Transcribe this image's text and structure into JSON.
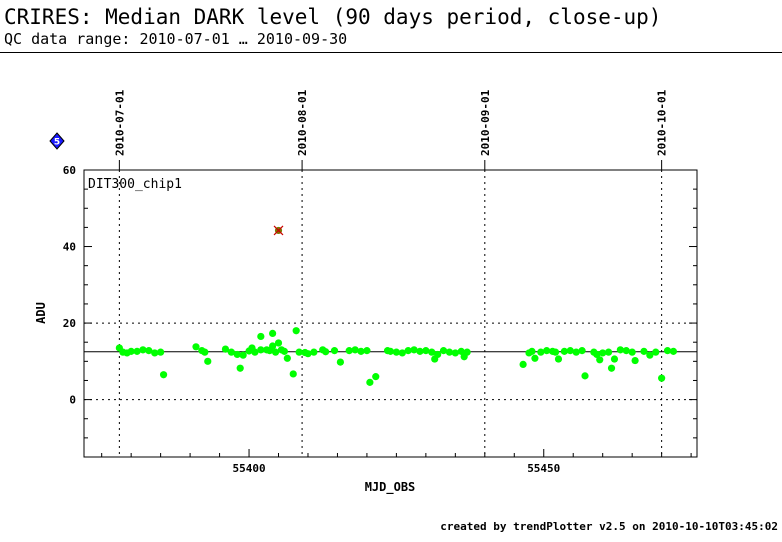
{
  "header": {
    "title": "CRIRES: Median DARK level (90 days period, close-up)",
    "subtitle": "QC data range: 2010-07-01 … 2010-09-30"
  },
  "footer": {
    "credit": "created by trendPlotter v2.5 on 2010-10-10T03:45:02"
  },
  "badge": {
    "label": "5",
    "color": "#1a1aff"
  },
  "chart_data": {
    "type": "scatter",
    "panel_label": "DIT300_chip1",
    "xlabel": "MJD_OBS",
    "ylabel": "ADU",
    "xlim": [
      55372,
      55476
    ],
    "ylim": [
      -15,
      60
    ],
    "x_ticks": [
      55400,
      55450
    ],
    "x_tick_labels": [
      "55400",
      "55450"
    ],
    "y_ticks": [
      0,
      20,
      40,
      60
    ],
    "y_tick_labels": [
      "0",
      "20",
      "40",
      "60"
    ],
    "y_gridlines": [
      0,
      20
    ],
    "reference_line": 12.5,
    "date_markers": [
      {
        "label": "2010-07-01",
        "x": 55378
      },
      {
        "label": "2010-08-01",
        "x": 55409
      },
      {
        "label": "2010-09-01",
        "x": 55440
      },
      {
        "label": "2010-10-01",
        "x": 55470
      }
    ],
    "marker_color": "#00ff00",
    "outlier_color": "#7a7a00",
    "series": [
      {
        "values": [
          [
            55378,
            13.5
          ],
          [
            55378.6,
            12.4
          ],
          [
            55379.3,
            12.2
          ],
          [
            55380,
            12.6
          ],
          [
            55381,
            12.6
          ],
          [
            55382,
            13.0
          ],
          [
            55383,
            12.8
          ],
          [
            55384,
            12.2
          ],
          [
            55385,
            12.4
          ],
          [
            55385.5,
            6.5
          ],
          [
            55391,
            13.8
          ],
          [
            55392,
            12.8
          ],
          [
            55392.5,
            12.4
          ],
          [
            55393,
            10.0
          ],
          [
            55396,
            13.2
          ],
          [
            55397,
            12.4
          ],
          [
            55398,
            11.8
          ],
          [
            55398.5,
            8.2
          ],
          [
            55399,
            11.6
          ],
          [
            55400,
            12.7
          ],
          [
            55400.5,
            13.5
          ],
          [
            55401,
            12.4
          ],
          [
            55402,
            13.0
          ],
          [
            55402,
            16.5
          ],
          [
            55403,
            13.0
          ],
          [
            55403.5,
            12.8
          ],
          [
            55404,
            17.3
          ],
          [
            55404,
            14.0
          ],
          [
            55404.5,
            12.4
          ],
          [
            55405,
            14.8
          ],
          [
            55405.5,
            13.0
          ],
          [
            55406,
            12.6
          ],
          [
            55406.5,
            10.8
          ],
          [
            55407.5,
            6.7
          ],
          [
            55408,
            18.0
          ],
          [
            55408.5,
            12.4
          ],
          [
            55409.5,
            12.3
          ],
          [
            55410,
            12.0
          ],
          [
            55411,
            12.4
          ],
          [
            55412.5,
            13.0
          ],
          [
            55413,
            12.5
          ],
          [
            55414.5,
            12.8
          ],
          [
            55415.5,
            9.8
          ],
          [
            55417,
            12.8
          ],
          [
            55418,
            13.0
          ],
          [
            55419,
            12.6
          ],
          [
            55420,
            12.8
          ],
          [
            55420.5,
            4.5
          ],
          [
            55421.5,
            6.0
          ],
          [
            55423.5,
            12.8
          ],
          [
            55424,
            12.6
          ],
          [
            55425,
            12.4
          ],
          [
            55426,
            12.2
          ],
          [
            55427,
            12.8
          ],
          [
            55428,
            13.0
          ],
          [
            55429,
            12.6
          ],
          [
            55430,
            12.8
          ],
          [
            55431,
            12.4
          ],
          [
            55431.5,
            10.6
          ],
          [
            55432,
            11.8
          ],
          [
            55433,
            12.8
          ],
          [
            55434,
            12.4
          ],
          [
            55435,
            12.2
          ],
          [
            55436,
            12.6
          ],
          [
            55436.5,
            11.2
          ],
          [
            55437,
            12.4
          ],
          [
            55446.5,
            9.2
          ],
          [
            55447.5,
            12.2
          ],
          [
            55448,
            12.6
          ],
          [
            55448.5,
            10.8
          ],
          [
            55449.5,
            12.4
          ],
          [
            55450.5,
            12.8
          ],
          [
            55451.5,
            12.6
          ],
          [
            55452,
            12.4
          ],
          [
            55452.5,
            10.6
          ],
          [
            55453.5,
            12.6
          ],
          [
            55454.5,
            12.8
          ],
          [
            55455.5,
            12.4
          ],
          [
            55456.5,
            12.8
          ],
          [
            55457,
            6.2
          ],
          [
            55458.5,
            12.4
          ],
          [
            55459,
            11.8
          ],
          [
            55459.5,
            10.4
          ],
          [
            55460,
            12.2
          ],
          [
            55461,
            12.4
          ],
          [
            55461.5,
            8.2
          ],
          [
            55462,
            10.6
          ],
          [
            55463,
            13.0
          ],
          [
            55464,
            12.8
          ],
          [
            55465,
            12.4
          ],
          [
            55465.5,
            10.2
          ],
          [
            55467,
            12.6
          ],
          [
            55468,
            11.6
          ],
          [
            55469,
            12.4
          ],
          [
            55470,
            5.6
          ],
          [
            55471,
            12.8
          ],
          [
            55472,
            12.6
          ]
        ]
      },
      {
        "values": [
          [
            55405,
            44.2
          ]
        ]
      }
    ]
  }
}
